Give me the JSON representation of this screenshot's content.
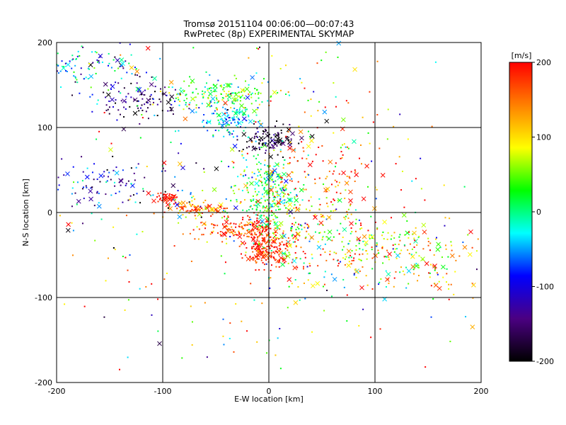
{
  "chart_data": {
    "type": "scatter",
    "title": "Tromsø 20151104 00:06:00—00:07:43",
    "subtitle": "RwPretec (8p) EXPERIMENTAL SKYMAP",
    "xlabel": "E-W location [km]",
    "ylabel": "N-S location [km]",
    "xlim": [
      -200,
      200
    ],
    "ylim": [
      -200,
      200
    ],
    "xticks": [
      "-200",
      "-100",
      "0",
      "100",
      "200"
    ],
    "yticks": [
      "-200",
      "-100",
      "0",
      "100",
      "200"
    ],
    "grid": true,
    "colorbar": {
      "label": "[m/s]",
      "range": [
        -200,
        200
      ],
      "ticks": [
        "200",
        "100",
        "0",
        "-100",
        "-200"
      ],
      "colors": [
        "#000000",
        "#4b0082",
        "#0000ff",
        "#00ffff",
        "#00ff00",
        "#ffff00",
        "#ff8000",
        "#ff0000"
      ]
    },
    "clusters": [
      {
        "cx": 0,
        "cy": -40,
        "sx": 12,
        "sy": 12,
        "n": 220,
        "vm": 185,
        "vs": 25
      },
      {
        "cx": -30,
        "cy": -20,
        "sx": 20,
        "sy": 6,
        "n": 130,
        "vm": 175,
        "vs": 40
      },
      {
        "cx": -70,
        "cy": 5,
        "sx": 18,
        "sy": 5,
        "n": 90,
        "vm": 150,
        "vs": 50
      },
      {
        "cx": -95,
        "cy": 18,
        "sx": 7,
        "sy": 3,
        "n": 40,
        "vm": 195,
        "vs": 10
      },
      {
        "cx": 0,
        "cy": 20,
        "sx": 15,
        "sy": 25,
        "n": 280,
        "vm": 20,
        "vs": 50
      },
      {
        "cx": 0,
        "cy": 85,
        "sx": 12,
        "sy": 8,
        "n": 110,
        "vm": -180,
        "vs": 30
      },
      {
        "cx": -40,
        "cy": 110,
        "sx": 15,
        "sy": 12,
        "n": 120,
        "vm": -40,
        "vs": 35
      },
      {
        "cx": -45,
        "cy": 140,
        "sx": 30,
        "sy": 10,
        "n": 170,
        "vm": 40,
        "vs": 50
      },
      {
        "cx": -120,
        "cy": 130,
        "sx": 22,
        "sy": 12,
        "n": 100,
        "vm": -150,
        "vs": 40
      },
      {
        "cx": -165,
        "cy": 170,
        "sx": 25,
        "sy": 15,
        "n": 110,
        "vm": -60,
        "vs": 70
      },
      {
        "cx": -150,
        "cy": 30,
        "sx": 35,
        "sy": 15,
        "n": 100,
        "vm": -110,
        "vs": 50
      },
      {
        "cx": 80,
        "cy": -40,
        "sx": 45,
        "sy": 20,
        "n": 240,
        "vm": 80,
        "vs": 80
      },
      {
        "cx": 140,
        "cy": -60,
        "sx": 30,
        "sy": 20,
        "n": 100,
        "vm": 90,
        "vs": 90
      },
      {
        "cx": 40,
        "cy": 30,
        "sx": 30,
        "sy": 40,
        "n": 190,
        "vm": 160,
        "vs": 60
      },
      {
        "cx": 0,
        "cy": 0,
        "sx": 110,
        "sy": 100,
        "n": 380,
        "vm": 40,
        "vs": 120
      }
    ]
  }
}
